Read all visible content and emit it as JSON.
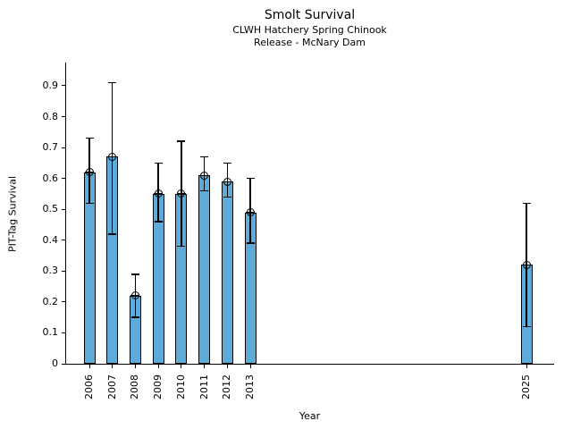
{
  "chart_data": {
    "type": "bar",
    "title": "Smolt Survival",
    "subtitles": [
      "CLWH Hatchery Spring Chinook",
      "Release - McNary Dam"
    ],
    "xlabel": "Year",
    "ylabel": "PIT-Tag Survival",
    "x": [
      2006,
      2007,
      2008,
      2009,
      2010,
      2011,
      2012,
      2013,
      2025
    ],
    "values": [
      0.62,
      0.67,
      0.22,
      0.55,
      0.55,
      0.61,
      0.59,
      0.49,
      0.32
    ],
    "error_low": [
      0.52,
      0.42,
      0.15,
      0.46,
      0.38,
      0.56,
      0.54,
      0.39,
      0.12
    ],
    "error_high": [
      0.73,
      0.91,
      0.29,
      0.65,
      0.72,
      0.67,
      0.65,
      0.6,
      0.52
    ],
    "y_ticks": [
      "0",
      "0.1",
      "0.2",
      "0.3",
      "0.4",
      "0.5",
      "0.6",
      "0.7",
      "0.8",
      "0.9"
    ],
    "xlim": [
      2004.95,
      2026.2
    ],
    "ylim": [
      0,
      0.975
    ],
    "grid": false,
    "legend": false,
    "marker": "circle-plus",
    "error_bars": "caps",
    "colors": {
      "bar_fill": "#5FABD7",
      "bar_edge": "#000000",
      "error": "#000000",
      "text": "#000000",
      "background": "#FFFFFF"
    }
  }
}
